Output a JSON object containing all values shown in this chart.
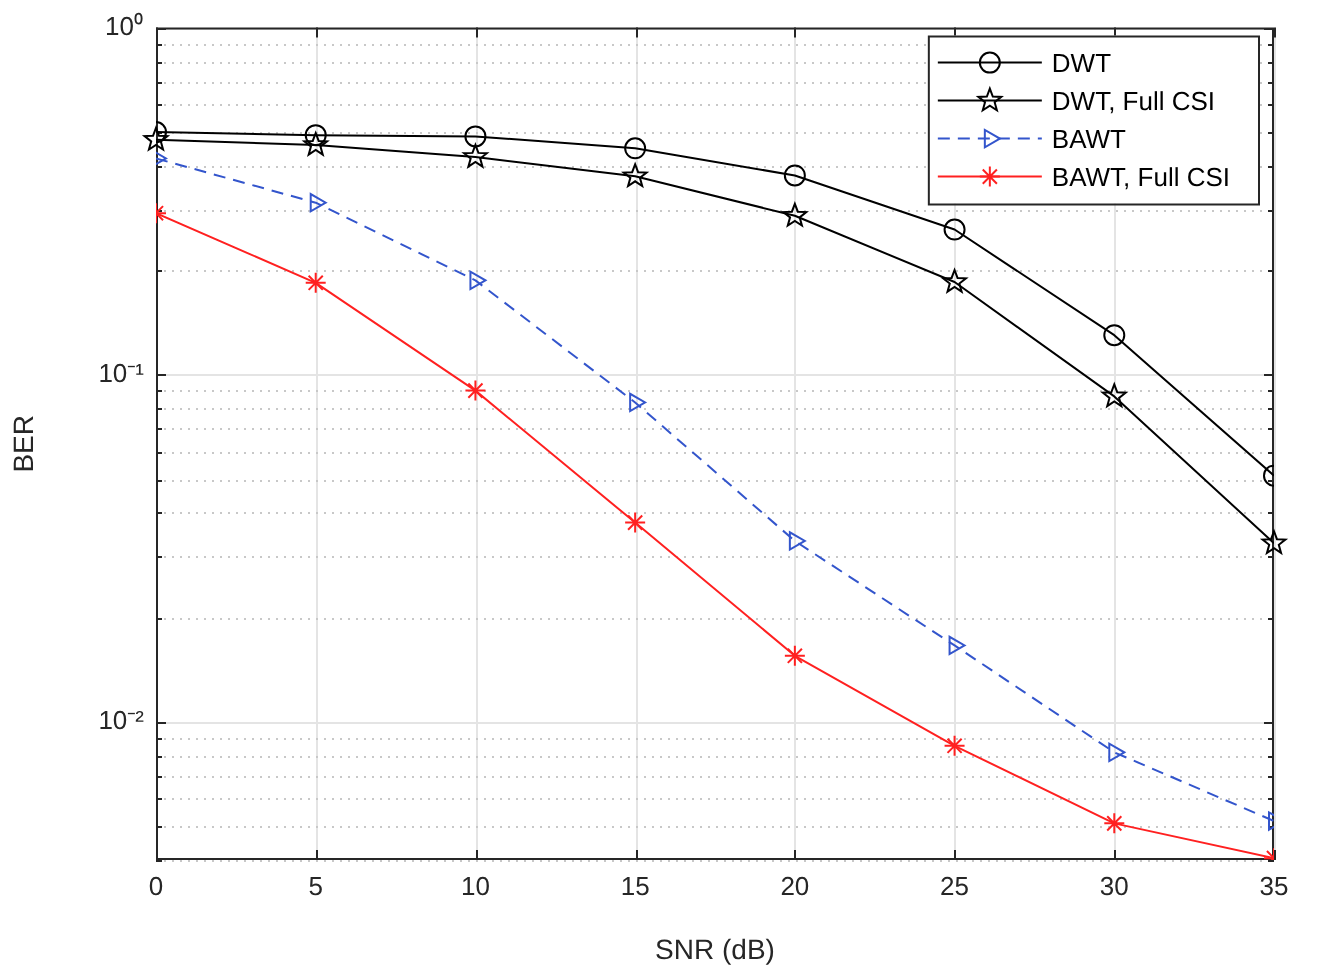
{
  "chart_data": {
    "type": "line",
    "xlabel": "SNR (dB)",
    "ylabel": "BER",
    "x": [
      0,
      5,
      10,
      15,
      20,
      25,
      30,
      35
    ],
    "xlim": [
      0,
      35
    ],
    "xticks": [
      0,
      5,
      10,
      15,
      20,
      25,
      30,
      35
    ],
    "ylim": [
      0.004,
      1
    ],
    "yticks": [
      {
        "value": 0.004,
        "label": null
      },
      {
        "value": 0.005,
        "label": null
      },
      {
        "value": 0.006,
        "label": null
      },
      {
        "value": 0.007,
        "label": null
      },
      {
        "value": 0.008,
        "label": null
      },
      {
        "value": 0.009,
        "label": null
      },
      {
        "value": 0.01,
        "label": "10⁻²"
      },
      {
        "value": 0.02,
        "label": null
      },
      {
        "value": 0.03,
        "label": null
      },
      {
        "value": 0.04,
        "label": null
      },
      {
        "value": 0.05,
        "label": null
      },
      {
        "value": 0.06,
        "label": null
      },
      {
        "value": 0.07,
        "label": null
      },
      {
        "value": 0.08,
        "label": null
      },
      {
        "value": 0.09,
        "label": null
      },
      {
        "value": 0.1,
        "label": "10⁻¹"
      },
      {
        "value": 0.2,
        "label": null
      },
      {
        "value": 0.3,
        "label": null
      },
      {
        "value": 0.4,
        "label": null
      },
      {
        "value": 0.5,
        "label": null
      },
      {
        "value": 0.6,
        "label": null
      },
      {
        "value": 0.7,
        "label": null
      },
      {
        "value": 0.8,
        "label": null
      },
      {
        "value": 0.9,
        "label": null
      },
      {
        "value": 1,
        "label": "10⁰"
      }
    ],
    "log": "y",
    "grid": true,
    "legend": "top right",
    "series": [
      {
        "name": "DWT",
        "color": "#000000",
        "marker": "circle",
        "line_style": "solid",
        "values": [
          0.5,
          0.49,
          0.486,
          0.449,
          0.375,
          0.262,
          0.13,
          0.0512
        ]
      },
      {
        "name": "DWT, Full CSI",
        "color": "#000000",
        "marker": "star",
        "line_style": "solid",
        "values": [
          0.475,
          0.459,
          0.424,
          0.373,
          0.287,
          0.185,
          0.0866,
          0.0327
        ]
      },
      {
        "name": "BAWT",
        "color": "#3355cc",
        "marker": "triangle",
        "line_style": "dashed",
        "values": [
          0.42,
          0.313,
          0.187,
          0.0832,
          0.0332,
          0.0166,
          0.00817,
          0.00518
        ]
      },
      {
        "name": "BAWT, Full CSI",
        "color": "#ff2020",
        "marker": "cross",
        "line_style": "solid",
        "values": [
          0.292,
          0.184,
          0.09,
          0.0375,
          0.0155,
          0.00853,
          0.0051,
          0.00405
        ]
      }
    ]
  }
}
